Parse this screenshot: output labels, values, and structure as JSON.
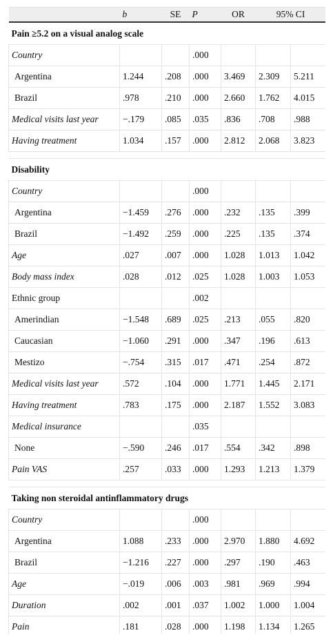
{
  "header": {
    "columns": [
      "b",
      "SE",
      "P",
      "OR"
    ],
    "ci": "95% CI"
  },
  "sections": [
    {
      "title": "Pain ≥5.2 on a visual analog scale",
      "rows": [
        {
          "label": "Country",
          "italic": true,
          "indent": false,
          "cells": [
            null,
            null,
            ".000",
            null,
            null,
            null
          ]
        },
        {
          "label": "Argentina",
          "italic": false,
          "indent": true,
          "cells": [
            "1.244",
            ".208",
            ".000",
            "3.469",
            "2.309",
            "5.211"
          ]
        },
        {
          "label": "Brazil",
          "italic": false,
          "indent": true,
          "cells": [
            ".978",
            ".210",
            ".000",
            "2.660",
            "1.762",
            "4.015"
          ]
        },
        {
          "label": "Medical visits last year",
          "italic": true,
          "indent": false,
          "cells": [
            "−.179",
            ".085",
            ".035",
            ".836",
            ".708",
            ".988"
          ]
        },
        {
          "label": "Having treatment",
          "italic": true,
          "indent": false,
          "cells": [
            "1.034",
            ".157",
            ".000",
            "2.812",
            "2.068",
            "3.823"
          ]
        }
      ]
    },
    {
      "title": "Disability",
      "rows": [
        {
          "label": "Country",
          "italic": true,
          "indent": false,
          "cells": [
            null,
            null,
            ".000",
            null,
            null,
            null
          ]
        },
        {
          "label": "Argentina",
          "italic": false,
          "indent": true,
          "cells": [
            "−1.459",
            ".276",
            ".000",
            ".232",
            ".135",
            ".399"
          ]
        },
        {
          "label": "Brazil",
          "italic": false,
          "indent": true,
          "cells": [
            "−1.492",
            ".259",
            ".000",
            ".225",
            ".135",
            ".374"
          ]
        },
        {
          "label": "Age",
          "italic": true,
          "indent": false,
          "cells": [
            ".027",
            ".007",
            ".000",
            "1.028",
            "1.013",
            "1.042"
          ]
        },
        {
          "label": "Body mass index",
          "italic": true,
          "indent": false,
          "cells": [
            ".028",
            ".012",
            ".025",
            "1.028",
            "1.003",
            "1.053"
          ]
        },
        {
          "label": "Ethnic group",
          "italic": false,
          "indent": false,
          "cells": [
            null,
            null,
            ".002",
            null,
            null,
            null
          ]
        },
        {
          "label": "Amerindian",
          "italic": false,
          "indent": true,
          "cells": [
            "−1.548",
            ".689",
            ".025",
            ".213",
            ".055",
            ".820"
          ]
        },
        {
          "label": "Caucasian",
          "italic": false,
          "indent": true,
          "cells": [
            "−1.060",
            ".291",
            ".000",
            ".347",
            ".196",
            ".613"
          ]
        },
        {
          "label": "Mestizo",
          "italic": false,
          "indent": true,
          "cells": [
            "−.754",
            ".315",
            ".017",
            ".471",
            ".254",
            ".872"
          ]
        },
        {
          "label": "Medical visits last year",
          "italic": true,
          "indent": false,
          "cells": [
            ".572",
            ".104",
            ".000",
            "1.771",
            "1.445",
            "2.171"
          ]
        },
        {
          "label": "Having treatment",
          "italic": true,
          "indent": false,
          "cells": [
            ".783",
            ".175",
            ".000",
            "2.187",
            "1.552",
            "3.083"
          ]
        },
        {
          "label": "Medical insurance",
          "italic": true,
          "indent": false,
          "cells": [
            null,
            null,
            ".035",
            null,
            null,
            null
          ]
        },
        {
          "label": "None",
          "italic": false,
          "indent": true,
          "cells": [
            "−.590",
            ".246",
            ".017",
            ".554",
            ".342",
            ".898"
          ]
        },
        {
          "label": "Pain VAS",
          "italic": true,
          "indent": false,
          "cells": [
            ".257",
            ".033",
            ".000",
            "1.293",
            "1.213",
            "1.379"
          ]
        }
      ]
    },
    {
      "title": "Taking non steroidal antinflammatory drugs",
      "rows": [
        {
          "label": "Country",
          "italic": true,
          "indent": false,
          "cells": [
            null,
            null,
            ".000",
            null,
            null,
            null
          ]
        },
        {
          "label": "Argentina",
          "italic": false,
          "indent": true,
          "cells": [
            "1.088",
            ".233",
            ".000",
            "2.970",
            "1.880",
            "4.692"
          ]
        },
        {
          "label": "Brazil",
          "italic": false,
          "indent": true,
          "cells": [
            "−1.216",
            ".227",
            ".000",
            ".297",
            ".190",
            ".463"
          ]
        },
        {
          "label": "Age",
          "italic": true,
          "indent": false,
          "cells": [
            "−.019",
            ".006",
            ".003",
            ".981",
            ".969",
            ".994"
          ]
        },
        {
          "label": "Duration",
          "italic": true,
          "indent": false,
          "cells": [
            ".002",
            ".001",
            ".037",
            "1.002",
            "1.000",
            "1.004"
          ]
        },
        {
          "label": "Pain",
          "italic": true,
          "indent": false,
          "cells": [
            ".181",
            ".028",
            ".000",
            "1.198",
            "1.134",
            "1.265"
          ]
        }
      ]
    }
  ]
}
